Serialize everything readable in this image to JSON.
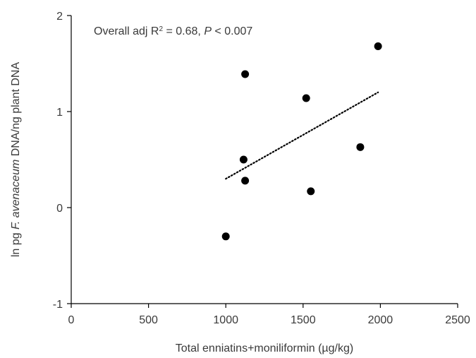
{
  "chart_data": {
    "type": "scatter",
    "xlabel": "Total enniatins+moniliformin (µg/kg)",
    "ylabel_parts": {
      "prefix": "ln pg ",
      "italic": "F. avenaceum",
      "suffix": " DNA/ng plant DNA"
    },
    "xlim": [
      0,
      2500
    ],
    "ylim": [
      -1,
      2
    ],
    "xticks": [
      0,
      500,
      1000,
      1500,
      2000,
      2500
    ],
    "yticks": [
      -1,
      0,
      1,
      2
    ],
    "xtick_labels": [
      "0",
      "500",
      "1000",
      "1500",
      "2000",
      "2500"
    ],
    "ytick_labels": [
      "-1",
      "0",
      "1",
      "2"
    ],
    "grid": false,
    "points": [
      {
        "x": 1000,
        "y": -0.3
      },
      {
        "x": 1115,
        "y": 0.5
      },
      {
        "x": 1125,
        "y": 1.39
      },
      {
        "x": 1125,
        "y": 0.28
      },
      {
        "x": 1520,
        "y": 1.14
      },
      {
        "x": 1550,
        "y": 0.17
      },
      {
        "x": 1870,
        "y": 0.63
      },
      {
        "x": 1985,
        "y": 1.68
      }
    ],
    "trendline": {
      "style": "dotted",
      "x": [
        1000,
        1985
      ],
      "y": [
        0.3,
        1.2
      ]
    },
    "annotation": {
      "prefix": "Overall adj R",
      "superscript": "2",
      "middle": " = 0.68, ",
      "italic": "P",
      "suffix": " < 0.007"
    },
    "colors": {
      "points": "#000000",
      "axis": "#000000",
      "text": "#3a3a3a"
    }
  }
}
